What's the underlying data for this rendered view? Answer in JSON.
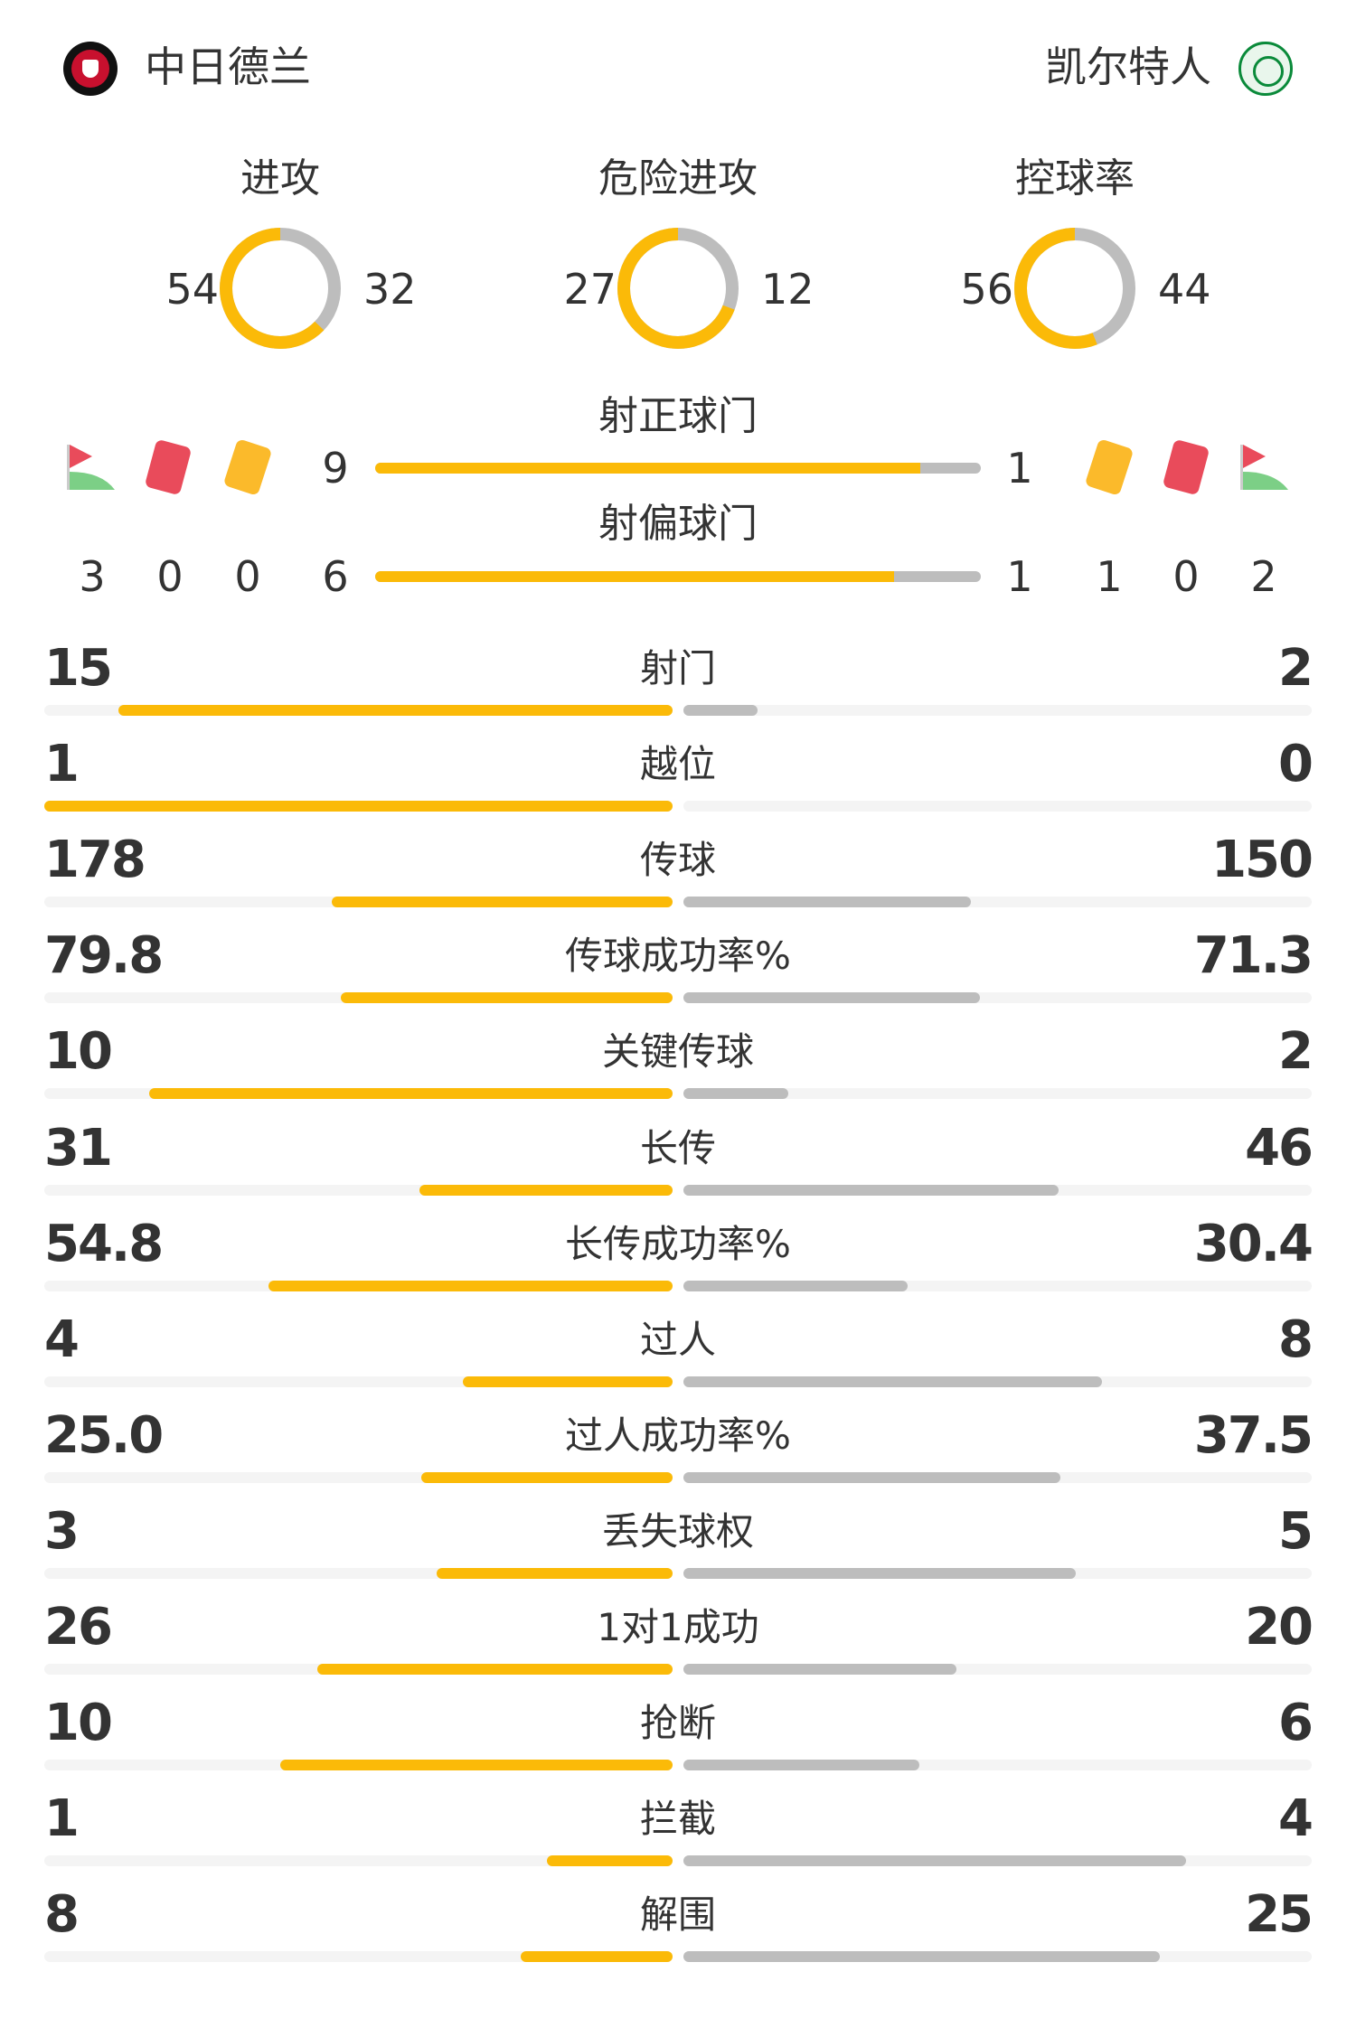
{
  "header": {
    "home_team": "中日德兰",
    "away_team": "凯尔特人",
    "home_logo_color": "#c8102e",
    "away_logo_color": "#0a8a3a"
  },
  "colors": {
    "home": "#fbba08",
    "away": "#bdbdbd",
    "track": "#f4f4f4",
    "red_card": "#e94b5b",
    "yellow_card": "#fbba2b"
  },
  "donuts": [
    {
      "label": "进攻",
      "home": 54,
      "away": 32
    },
    {
      "label": "危险进攻",
      "home": 27,
      "away": 12
    },
    {
      "label": "控球率",
      "home": 56,
      "away": 44
    }
  ],
  "shots_on_target": {
    "label": "射正球门",
    "home": 9,
    "away": 1
  },
  "shots_off_target": {
    "label": "射偏球门",
    "home": 6,
    "away": 1
  },
  "icons": {
    "home": {
      "corners": 3,
      "red_cards": 0,
      "yellow_cards": 0
    },
    "away": {
      "corners": 2,
      "red_cards": 0,
      "yellow_cards": 1
    }
  },
  "stats": [
    {
      "label": "射门",
      "home": "15",
      "away": "2"
    },
    {
      "label": "越位",
      "home": "1",
      "away": "0"
    },
    {
      "label": "传球",
      "home": "178",
      "away": "150"
    },
    {
      "label": "传球成功率%",
      "home": "79.8",
      "away": "71.3"
    },
    {
      "label": "关键传球",
      "home": "10",
      "away": "2"
    },
    {
      "label": "长传",
      "home": "31",
      "away": "46"
    },
    {
      "label": "长传成功率%",
      "home": "54.8",
      "away": "30.4"
    },
    {
      "label": "过人",
      "home": "4",
      "away": "8"
    },
    {
      "label": "过人成功率%",
      "home": "25.0",
      "away": "37.5"
    },
    {
      "label": "丢失球权",
      "home": "3",
      "away": "5"
    },
    {
      "label": "1对1成功",
      "home": "26",
      "away": "20"
    },
    {
      "label": "抢断",
      "home": "10",
      "away": "6"
    },
    {
      "label": "拦截",
      "home": "1",
      "away": "4"
    },
    {
      "label": "解围",
      "home": "8",
      "away": "25"
    }
  ]
}
